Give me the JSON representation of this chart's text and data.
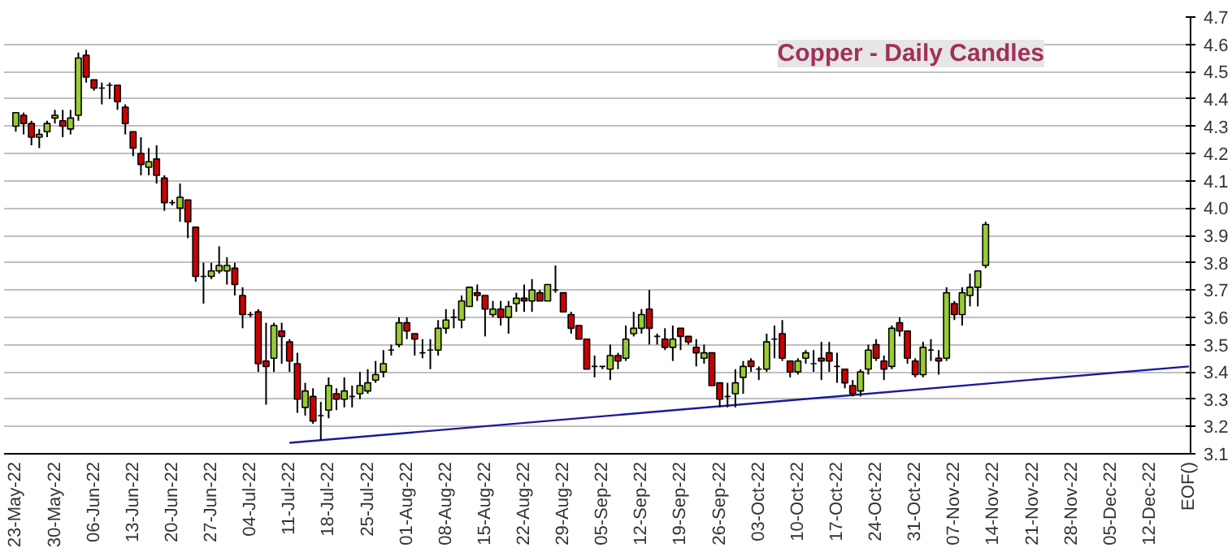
{
  "chart_data": {
    "type": "candlestick",
    "title": "Copper - Daily Candles",
    "categories": [
      "23-May-22",
      null,
      null,
      null,
      null,
      "30-May-22",
      null,
      null,
      null,
      null,
      "06-Jun-22",
      null,
      null,
      null,
      null,
      "13-Jun-22",
      null,
      null,
      null,
      null,
      "20-Jun-22",
      null,
      null,
      null,
      null,
      "27-Jun-22",
      null,
      null,
      null,
      null,
      "04-Jul-22",
      null,
      null,
      null,
      null,
      "11-Jul-22",
      null,
      null,
      null,
      null,
      "18-Jul-22",
      null,
      null,
      null,
      null,
      "25-Jul-22",
      null,
      null,
      null,
      null,
      "01-Aug-22",
      null,
      null,
      null,
      null,
      "08-Aug-22",
      null,
      null,
      null,
      null,
      "15-Aug-22",
      null,
      null,
      null,
      null,
      "22-Aug-22",
      null,
      null,
      null,
      null,
      "29-Aug-22",
      null,
      null,
      null,
      null,
      "05-Sep-22",
      null,
      null,
      null,
      null,
      "12-Sep-22",
      null,
      null,
      null,
      null,
      "19-Sep-22",
      null,
      null,
      null,
      null,
      "26-Sep-22",
      null,
      null,
      null,
      null,
      "03-Oct-22",
      null,
      null,
      null,
      null,
      "10-Oct-22",
      null,
      null,
      null,
      null,
      "17-Oct-22",
      null,
      null,
      null,
      null,
      "24-Oct-22",
      null,
      null,
      null,
      null,
      "31-Oct-22",
      null,
      null,
      null,
      null,
      "07-Nov-22",
      null,
      null,
      null,
      null,
      "14-Nov-22",
      null,
      null,
      null,
      null,
      "21-Nov-22",
      null,
      null,
      null,
      null,
      "28-Nov-22",
      null,
      null,
      null,
      null,
      "05-Dec-22",
      null,
      null,
      null,
      null,
      "12-Dec-22",
      null,
      null,
      null,
      null,
      "EOF()"
    ],
    "ohlc": [
      [
        4.3,
        4.35,
        4.28,
        4.35
      ],
      [
        4.34,
        4.35,
        4.27,
        4.31
      ],
      [
        4.31,
        4.32,
        4.23,
        4.26
      ],
      [
        4.26,
        4.29,
        4.22,
        4.27
      ],
      [
        4.28,
        4.32,
        4.26,
        4.31
      ],
      [
        4.33,
        4.36,
        4.31,
        4.34
      ],
      [
        4.32,
        4.36,
        4.26,
        4.3
      ],
      [
        4.29,
        4.36,
        4.27,
        4.33
      ],
      [
        4.34,
        4.57,
        4.32,
        4.55
      ],
      [
        4.56,
        4.58,
        4.46,
        4.48
      ],
      [
        4.47,
        4.47,
        4.43,
        4.44
      ],
      [
        4.44,
        4.46,
        4.38,
        4.44
      ],
      [
        4.45,
        4.46,
        4.4,
        4.45
      ],
      [
        4.45,
        4.45,
        4.36,
        4.39
      ],
      [
        4.37,
        4.38,
        4.27,
        4.31
      ],
      [
        4.28,
        4.28,
        4.19,
        4.22
      ],
      [
        4.2,
        4.26,
        4.12,
        4.16
      ],
      [
        4.15,
        4.22,
        4.12,
        4.17
      ],
      [
        4.18,
        4.23,
        4.09,
        4.12
      ],
      [
        4.11,
        4.12,
        3.99,
        4.02
      ],
      [
        4.02,
        4.03,
        4.01,
        4.02
      ],
      [
        4.0,
        4.09,
        3.95,
        4.04
      ],
      [
        4.03,
        4.03,
        3.89,
        3.95
      ],
      [
        3.93,
        3.93,
        3.73,
        3.75
      ],
      [
        3.75,
        3.8,
        3.65,
        3.75
      ],
      [
        3.75,
        3.8,
        3.74,
        3.77
      ],
      [
        3.77,
        3.86,
        3.76,
        3.79
      ],
      [
        3.77,
        3.82,
        3.72,
        3.79
      ],
      [
        3.78,
        3.8,
        3.68,
        3.72
      ],
      [
        3.68,
        3.71,
        3.56,
        3.61
      ],
      [
        3.61,
        3.62,
        3.6,
        3.61
      ],
      [
        3.62,
        3.63,
        3.4,
        3.43
      ],
      [
        3.44,
        3.58,
        3.28,
        3.42
      ],
      [
        3.45,
        3.58,
        3.4,
        3.57
      ],
      [
        3.55,
        3.58,
        3.43,
        3.53
      ],
      [
        3.51,
        3.52,
        3.4,
        3.44
      ],
      [
        3.43,
        3.47,
        3.25,
        3.3
      ],
      [
        3.27,
        3.36,
        3.24,
        3.33
      ],
      [
        3.31,
        3.34,
        3.21,
        3.22
      ],
      [
        3.24,
        3.29,
        3.15,
        3.24
      ],
      [
        3.26,
        3.38,
        3.23,
        3.35
      ],
      [
        3.32,
        3.34,
        3.26,
        3.3
      ],
      [
        3.3,
        3.38,
        3.27,
        3.33
      ],
      [
        3.31,
        3.35,
        3.27,
        3.31
      ],
      [
        3.32,
        3.4,
        3.3,
        3.35
      ],
      [
        3.33,
        3.41,
        3.32,
        3.36
      ],
      [
        3.37,
        3.44,
        3.36,
        3.39
      ],
      [
        3.4,
        3.48,
        3.38,
        3.43
      ],
      [
        3.48,
        3.5,
        3.46,
        3.48
      ],
      [
        3.5,
        3.6,
        3.49,
        3.58
      ],
      [
        3.58,
        3.6,
        3.52,
        3.55
      ],
      [
        3.54,
        3.54,
        3.46,
        3.52
      ],
      [
        3.47,
        3.52,
        3.45,
        3.47
      ],
      [
        3.48,
        3.52,
        3.41,
        3.48
      ],
      [
        3.48,
        3.59,
        3.46,
        3.56
      ],
      [
        3.56,
        3.63,
        3.54,
        3.59
      ],
      [
        3.6,
        3.63,
        3.56,
        3.6
      ],
      [
        3.59,
        3.68,
        3.56,
        3.66
      ],
      [
        3.64,
        3.71,
        3.64,
        3.71
      ],
      [
        3.69,
        3.72,
        3.66,
        3.68
      ],
      [
        3.68,
        3.68,
        3.53,
        3.63
      ],
      [
        3.61,
        3.66,
        3.6,
        3.63
      ],
      [
        3.63,
        3.66,
        3.57,
        3.6
      ],
      [
        3.6,
        3.66,
        3.54,
        3.64
      ],
      [
        3.65,
        3.69,
        3.62,
        3.67
      ],
      [
        3.67,
        3.72,
        3.62,
        3.66
      ],
      [
        3.66,
        3.74,
        3.62,
        3.7
      ],
      [
        3.69,
        3.7,
        3.66,
        3.66
      ],
      [
        3.66,
        3.72,
        3.66,
        3.72
      ],
      [
        3.7,
        3.79,
        3.69,
        3.7
      ],
      [
        3.69,
        3.69,
        3.62,
        3.62
      ],
      [
        3.61,
        3.62,
        3.54,
        3.56
      ],
      [
        3.57,
        3.57,
        3.52,
        3.52
      ],
      [
        3.52,
        3.52,
        3.41,
        3.41
      ],
      [
        3.42,
        3.46,
        3.38,
        3.42
      ],
      [
        3.42,
        3.42,
        3.41,
        3.42
      ],
      [
        3.41,
        3.5,
        3.37,
        3.46
      ],
      [
        3.46,
        3.47,
        3.41,
        3.44
      ],
      [
        3.45,
        3.57,
        3.44,
        3.52
      ],
      [
        3.54,
        3.62,
        3.53,
        3.56
      ],
      [
        3.56,
        3.63,
        3.54,
        3.61
      ],
      [
        3.63,
        3.7,
        3.5,
        3.56
      ],
      [
        3.53,
        3.54,
        3.5,
        3.53
      ],
      [
        3.52,
        3.56,
        3.48,
        3.49
      ],
      [
        3.49,
        3.57,
        3.44,
        3.52
      ],
      [
        3.56,
        3.56,
        3.48,
        3.53
      ],
      [
        3.53,
        3.53,
        3.5,
        3.51
      ],
      [
        3.49,
        3.52,
        3.42,
        3.47
      ],
      [
        3.45,
        3.5,
        3.43,
        3.47
      ],
      [
        3.47,
        3.47,
        3.35,
        3.35
      ],
      [
        3.36,
        3.36,
        3.27,
        3.3
      ],
      [
        3.31,
        3.36,
        3.27,
        3.31
      ],
      [
        3.32,
        3.41,
        3.27,
        3.36
      ],
      [
        3.38,
        3.44,
        3.32,
        3.42
      ],
      [
        3.44,
        3.45,
        3.4,
        3.42
      ],
      [
        3.41,
        3.42,
        3.37,
        3.41
      ],
      [
        3.41,
        3.54,
        3.4,
        3.51
      ],
      [
        3.52,
        3.57,
        3.45,
        3.52
      ],
      [
        3.54,
        3.59,
        3.44,
        3.45
      ],
      [
        3.44,
        3.44,
        3.38,
        3.4
      ],
      [
        3.4,
        3.45,
        3.39,
        3.44
      ],
      [
        3.45,
        3.48,
        3.43,
        3.47
      ],
      [
        3.43,
        3.48,
        3.4,
        3.43
      ],
      [
        3.45,
        3.51,
        3.37,
        3.44
      ],
      [
        3.47,
        3.51,
        3.4,
        3.44
      ],
      [
        3.42,
        3.47,
        3.36,
        3.42
      ],
      [
        3.41,
        3.41,
        3.34,
        3.36
      ],
      [
        3.35,
        3.37,
        3.31,
        3.32
      ],
      [
        3.33,
        3.41,
        3.31,
        3.4
      ],
      [
        3.41,
        3.5,
        3.39,
        3.48
      ],
      [
        3.5,
        3.52,
        3.44,
        3.45
      ],
      [
        3.44,
        3.46,
        3.37,
        3.41
      ],
      [
        3.42,
        3.57,
        3.41,
        3.56
      ],
      [
        3.58,
        3.6,
        3.53,
        3.55
      ],
      [
        3.55,
        3.55,
        3.43,
        3.45
      ],
      [
        3.44,
        3.45,
        3.38,
        3.39
      ],
      [
        3.39,
        3.51,
        3.38,
        3.49
      ],
      [
        3.48,
        3.52,
        3.44,
        3.48
      ],
      [
        3.45,
        3.48,
        3.39,
        3.44
      ],
      [
        3.45,
        3.71,
        3.44,
        3.69
      ],
      [
        3.65,
        3.66,
        3.59,
        3.61
      ],
      [
        3.61,
        3.71,
        3.57,
        3.69
      ],
      [
        3.68,
        3.76,
        3.64,
        3.71
      ],
      [
        3.71,
        3.77,
        3.64,
        3.77
      ],
      [
        3.79,
        3.95,
        3.78,
        3.94
      ],
      null,
      null,
      null,
      null,
      null,
      null,
      null,
      null,
      null,
      null,
      null,
      null,
      null,
      null,
      null,
      null,
      null,
      null,
      null,
      null,
      null,
      null,
      null,
      null,
      null,
      null
    ],
    "colors": [
      "#99cc33",
      "#cc0000",
      "#cc0000",
      "#99cc33",
      "#99cc33",
      "#99cc33",
      "#cc0000",
      "#99cc33",
      "#99cc33",
      "#cc0000",
      "#cc0000",
      "#000000",
      "#000000",
      "#cc0000",
      "#cc0000",
      "#cc0000",
      "#cc0000",
      "#99cc33",
      "#cc0000",
      "#cc0000",
      "#000000",
      "#99cc33",
      "#cc0000",
      "#cc0000",
      "#000000",
      "#99cc33",
      "#99cc33",
      "#99cc33",
      "#cc0000",
      "#cc0000",
      "#000000",
      "#cc0000",
      "#cc0000",
      "#99cc33",
      "#cc0000",
      "#cc0000",
      "#cc0000",
      "#99cc33",
      "#cc0000",
      "#000000",
      "#99cc33",
      "#cc0000",
      "#99cc33",
      "#000000",
      "#99cc33",
      "#99cc33",
      "#99cc33",
      "#99cc33",
      "#000000",
      "#99cc33",
      "#cc0000",
      "#cc0000",
      "#000000",
      "#000000",
      "#99cc33",
      "#99cc33",
      "#000000",
      "#99cc33",
      "#99cc33",
      "#cc0000",
      "#cc0000",
      "#99cc33",
      "#cc0000",
      "#99cc33",
      "#99cc33",
      "#cc0000",
      "#99cc33",
      "#cc0000",
      "#99cc33",
      "#000000",
      "#cc0000",
      "#cc0000",
      "#cc0000",
      "#cc0000",
      "#000000",
      "#000000",
      "#99cc33",
      "#cc0000",
      "#99cc33",
      "#99cc33",
      "#99cc33",
      "#cc0000",
      "#000000",
      "#cc0000",
      "#99cc33",
      "#cc0000",
      "#cc0000",
      "#cc0000",
      "#99cc33",
      "#cc0000",
      "#cc0000",
      "#000000",
      "#99cc33",
      "#99cc33",
      "#cc0000",
      "#000000",
      "#99cc33",
      "#000000",
      "#cc0000",
      "#cc0000",
      "#99cc33",
      "#99cc33",
      "#000000",
      "#cc0000",
      "#cc0000",
      "#000000",
      "#cc0000",
      "#cc0000",
      "#99cc33",
      "#99cc33",
      "#cc0000",
      "#cc0000",
      "#99cc33",
      "#cc0000",
      "#cc0000",
      "#cc0000",
      "#99cc33",
      "#000000",
      "#cc0000",
      "#99cc33",
      "#cc0000",
      "#99cc33",
      "#99cc33",
      "#99cc33",
      "#99cc33",
      null,
      null,
      null,
      null,
      null,
      null,
      null,
      null,
      null,
      null,
      null,
      null,
      null,
      null,
      null,
      null,
      null,
      null,
      null,
      null,
      null,
      null,
      null,
      null,
      null,
      null
    ],
    "series": [
      {
        "type": "line",
        "color": "#1a1a9a",
        "x": [
          "11-Jul-22",
          "EOF()"
        ],
        "values": [
          3.14,
          3.42
        ]
      }
    ],
    "ylim": [
      3.1,
      4.7
    ],
    "yticks": [
      {
        "value": 3.1,
        "label": "3.1"
      },
      {
        "value": 3.2,
        "label": "3.2"
      },
      {
        "value": 3.3,
        "label": "3.3"
      },
      {
        "value": 3.4,
        "label": "3.4"
      },
      {
        "value": 3.5,
        "label": "3.5"
      },
      {
        "value": 3.6,
        "label": "3.6"
      },
      {
        "value": 3.7,
        "label": "3.7"
      },
      {
        "value": 3.8,
        "label": "3.8"
      },
      {
        "value": 3.9,
        "label": "3.9"
      },
      {
        "value": 4.0,
        "label": "4.0"
      },
      {
        "value": 4.1,
        "label": "4.1"
      },
      {
        "value": 4.2,
        "label": "4.2"
      },
      {
        "value": 4.3,
        "label": "4.3"
      },
      {
        "value": 4.4,
        "label": "4.4"
      },
      {
        "value": 4.5,
        "label": "4.5"
      },
      {
        "value": 4.6,
        "label": "4.6"
      },
      {
        "value": 4.7,
        "label": "4.7"
      }
    ],
    "grid": "y"
  }
}
